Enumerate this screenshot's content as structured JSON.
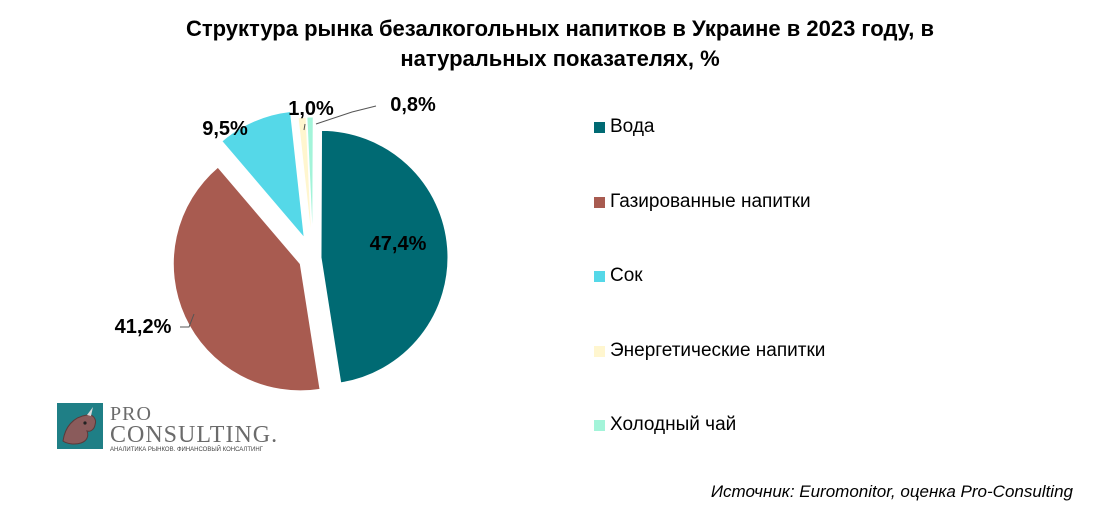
{
  "chart_data": {
    "type": "pie",
    "title": "Структура рынка безалкогольных напитков в Украине в 2023 году, в натуральных показателях, %",
    "title_line1": "Структура рынка безалкогольных напитков в Украине в 2023 году, в",
    "title_line2": "натуральных показателях, %",
    "categories": [
      "Вода",
      "Газированные напитки",
      "Сок",
      "Энергетические напитки",
      "Холодный чай"
    ],
    "values": [
      47.4,
      41.2,
      9.5,
      1.0,
      0.8
    ],
    "value_labels": [
      "47,4%",
      "41,2%",
      "9,5%",
      "1,0%",
      "0,8%"
    ],
    "colors": [
      "#006a73",
      "#a85b50",
      "#55d8e8",
      "#fff6cf",
      "#a3f4d9"
    ],
    "exploded": true,
    "legend_position": "right"
  },
  "logo": {
    "pro": "PRO",
    "consulting": "CONSULTING.",
    "tagline": "АНАЛИТИКА РЫНКОВ. ФИНАНСОВЫЙ КОНСАЛТИНГ"
  },
  "source": "Источник: Euromonitor, оценка Pro-Consulting"
}
